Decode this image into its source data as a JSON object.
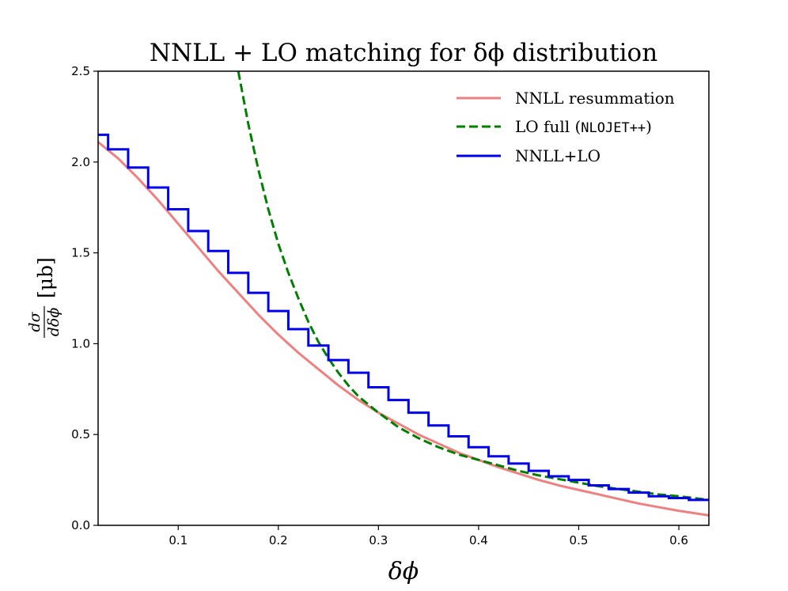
{
  "chart_data": {
    "type": "line",
    "title": "NNLL + LO matching for δϕ distribution",
    "xlabel": "δϕ",
    "ylabel": {
      "numerator": "dσ",
      "denominator": "dδϕ",
      "unit": "[μb]"
    },
    "xlim": [
      0.02,
      0.63
    ],
    "ylim": [
      0.0,
      2.5
    ],
    "xticks": [
      0.1,
      0.2,
      0.3,
      0.4,
      0.5,
      0.6
    ],
    "xtick_labels": [
      "0.1",
      "0.2",
      "0.3",
      "0.4",
      "0.5",
      "0.6"
    ],
    "yticks": [
      0.0,
      0.5,
      1.0,
      1.5,
      2.0,
      2.5
    ],
    "ytick_labels": [
      "0.0",
      "0.5",
      "1.0",
      "1.5",
      "2.0",
      "2.5"
    ],
    "grid": false,
    "legend_position": "top-right",
    "series": [
      {
        "name": "NNLL resummation",
        "style": "solid",
        "color": "#ee8080",
        "x": [
          0.02,
          0.04,
          0.06,
          0.08,
          0.1,
          0.12,
          0.14,
          0.16,
          0.18,
          0.2,
          0.22,
          0.24,
          0.26,
          0.28,
          0.3,
          0.32,
          0.34,
          0.36,
          0.38,
          0.4,
          0.42,
          0.44,
          0.46,
          0.48,
          0.5,
          0.52,
          0.54,
          0.56,
          0.58,
          0.6,
          0.63
        ],
        "y": [
          2.11,
          2.02,
          1.91,
          1.79,
          1.66,
          1.53,
          1.4,
          1.28,
          1.16,
          1.05,
          0.95,
          0.86,
          0.77,
          0.69,
          0.62,
          0.56,
          0.5,
          0.45,
          0.4,
          0.36,
          0.32,
          0.285,
          0.25,
          0.22,
          0.195,
          0.17,
          0.145,
          0.12,
          0.1,
          0.08,
          0.055
        ]
      },
      {
        "name": "LO full (NLOJET++)",
        "name_text": "LO full (",
        "name_mono": "NLOJET++",
        "name_close": ")",
        "style": "dashed",
        "color": "#008000",
        "x": [
          0.16,
          0.17,
          0.18,
          0.19,
          0.2,
          0.21,
          0.22,
          0.23,
          0.24,
          0.25,
          0.26,
          0.27,
          0.28,
          0.3,
          0.32,
          0.34,
          0.36,
          0.38,
          0.4,
          0.42,
          0.44,
          0.46,
          0.48,
          0.5,
          0.52,
          0.54,
          0.56,
          0.58,
          0.6,
          0.63
        ],
        "y": [
          2.5,
          2.21,
          1.96,
          1.74,
          1.55,
          1.39,
          1.25,
          1.12,
          1.01,
          0.92,
          0.84,
          0.77,
          0.71,
          0.62,
          0.54,
          0.48,
          0.43,
          0.39,
          0.36,
          0.33,
          0.3,
          0.275,
          0.255,
          0.235,
          0.215,
          0.2,
          0.185,
          0.17,
          0.16,
          0.14
        ]
      },
      {
        "name": "NNLL+LO",
        "style": "step",
        "color": "#0000ee",
        "bin_edges": [
          0.02,
          0.03,
          0.05,
          0.07,
          0.09,
          0.11,
          0.13,
          0.15,
          0.17,
          0.19,
          0.21,
          0.23,
          0.25,
          0.27,
          0.29,
          0.31,
          0.33,
          0.35,
          0.37,
          0.39,
          0.41,
          0.43,
          0.45,
          0.47,
          0.49,
          0.51,
          0.53,
          0.55,
          0.57,
          0.59,
          0.61,
          0.63
        ],
        "values": [
          2.15,
          2.07,
          1.97,
          1.86,
          1.74,
          1.62,
          1.51,
          1.39,
          1.28,
          1.18,
          1.08,
          0.99,
          0.91,
          0.84,
          0.76,
          0.69,
          0.62,
          0.55,
          0.49,
          0.43,
          0.38,
          0.34,
          0.3,
          0.27,
          0.25,
          0.22,
          0.2,
          0.18,
          0.16,
          0.15,
          0.14
        ]
      }
    ]
  }
}
